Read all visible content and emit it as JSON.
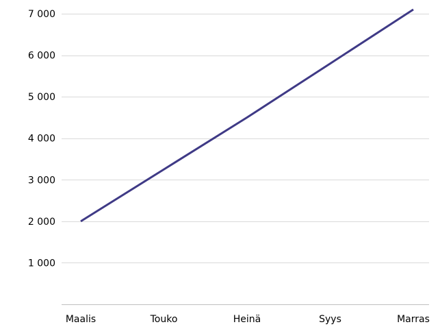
{
  "chart_data": {
    "type": "line",
    "categories": [
      "Maalis",
      "Touko",
      "Heinä",
      "Syys",
      "Marras"
    ],
    "series": [
      {
        "values": [
          2000,
          3250,
          4500,
          5800,
          7100
        ]
      }
    ],
    "y_ticks": [
      {
        "value": 1000,
        "label": "1 000"
      },
      {
        "value": 2000,
        "label": "2 000"
      },
      {
        "value": 3000,
        "label": "3 000"
      },
      {
        "value": 4000,
        "label": "4 000"
      },
      {
        "value": 5000,
        "label": "5 000"
      },
      {
        "value": 6000,
        "label": "6 000"
      },
      {
        "value": 7000,
        "label": "7 000"
      }
    ],
    "ylim": [
      0,
      7000
    ],
    "grid": true,
    "legend": "none",
    "colors": {
      "line": "#3f3a86",
      "grid": "#d9d9d9",
      "axis": "#bfbfbf",
      "text": "#000000"
    }
  }
}
